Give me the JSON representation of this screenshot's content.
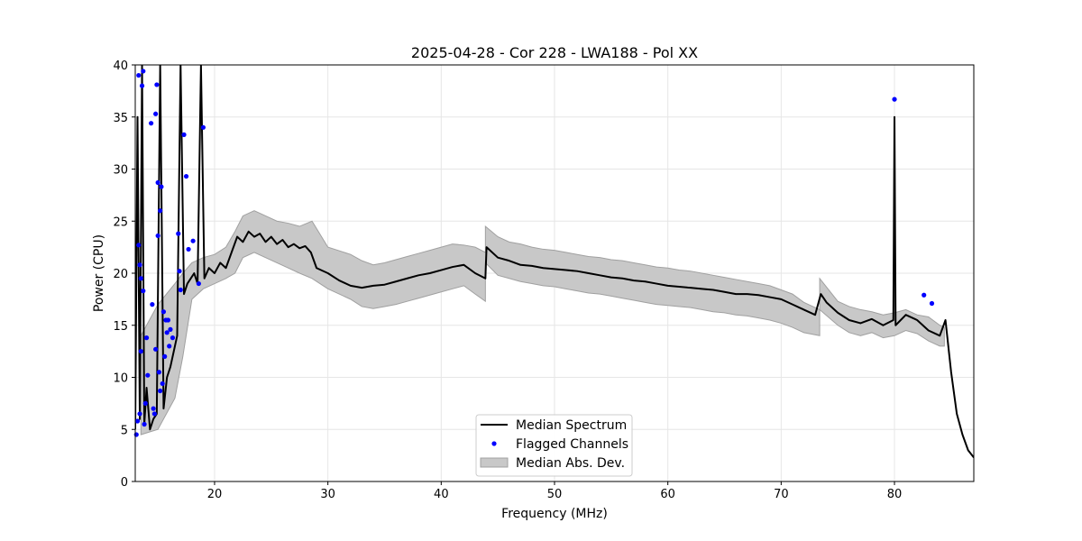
{
  "chart_data": {
    "type": "line",
    "title": "2025-04-28 - Cor 228 - LWA188 - Pol XX",
    "xlabel": "Frequency (MHz)",
    "ylabel": "Power (CPU)",
    "xlim": [
      13.0,
      87.0
    ],
    "ylim": [
      0,
      40
    ],
    "xticks": [
      20,
      30,
      40,
      50,
      60,
      70,
      80
    ],
    "yticks": [
      0,
      5,
      10,
      15,
      20,
      25,
      30,
      35,
      40
    ],
    "grid": true,
    "legend_position": "lower-center",
    "colors": {
      "median": "#000000",
      "flagged": "#0000ff",
      "mad_fill": "#c8c8c8",
      "mad_edge": "#a0a0a0",
      "grid": "#e6e6e6"
    },
    "series": [
      {
        "name": "Median Spectrum",
        "type": "line",
        "x": [
          13.0,
          13.2,
          13.4,
          13.6,
          13.8,
          14.0,
          14.3,
          14.6,
          14.9,
          15.2,
          15.5,
          15.8,
          16.1,
          16.4,
          16.7,
          17.0,
          17.3,
          17.6,
          17.9,
          18.2,
          18.5,
          18.8,
          19.1,
          19.5,
          20.0,
          20.5,
          21.0,
          21.5,
          22.0,
          22.5,
          23.0,
          23.5,
          24.0,
          24.5,
          25.0,
          25.5,
          26.0,
          26.5,
          27.0,
          27.5,
          28.0,
          28.5,
          29.0,
          30.0,
          31.0,
          32.0,
          33.0,
          34.0,
          35.0,
          36.0,
          37.0,
          38.0,
          39.0,
          40.0,
          41.0,
          42.0,
          43.0,
          43.9,
          44.0,
          45.0,
          46.0,
          47.0,
          48.0,
          49.0,
          50.0,
          51.0,
          52.0,
          53.0,
          54.0,
          55.0,
          56.0,
          57.0,
          58.0,
          59.0,
          60.0,
          61.0,
          62.0,
          63.0,
          64.0,
          65.0,
          66.0,
          67.0,
          68.0,
          69.0,
          70.0,
          71.0,
          72.0,
          73.0,
          73.5,
          74.0,
          75.0,
          76.0,
          77.0,
          78.0,
          79.0,
          79.9,
          80.0,
          80.1,
          81.0,
          82.0,
          83.0,
          84.0,
          84.5,
          85.0,
          85.5,
          86.0,
          86.5,
          87.0
        ],
        "y": [
          5.0,
          35.0,
          6.0,
          40.0,
          5.5,
          9.0,
          5.0,
          6.0,
          6.5,
          40.0,
          7.0,
          10.0,
          11.0,
          12.5,
          14.0,
          40.0,
          18.0,
          19.0,
          19.5,
          20.0,
          19.0,
          40.0,
          19.5,
          20.5,
          20.0,
          21.0,
          20.5,
          22.0,
          23.5,
          23.0,
          24.0,
          23.5,
          23.8,
          23.0,
          23.5,
          22.8,
          23.2,
          22.5,
          22.8,
          22.4,
          22.6,
          22.0,
          20.5,
          20.0,
          19.3,
          18.8,
          18.6,
          18.8,
          18.9,
          19.2,
          19.5,
          19.8,
          20.0,
          20.3,
          20.6,
          20.8,
          20.0,
          19.5,
          22.5,
          21.5,
          21.2,
          20.8,
          20.7,
          20.5,
          20.4,
          20.3,
          20.2,
          20.0,
          19.8,
          19.6,
          19.5,
          19.3,
          19.2,
          19.0,
          18.8,
          18.7,
          18.6,
          18.5,
          18.4,
          18.2,
          18.0,
          18.0,
          17.9,
          17.7,
          17.5,
          17.0,
          16.5,
          16.0,
          18.0,
          17.2,
          16.2,
          15.5,
          15.2,
          15.6,
          15.0,
          15.5,
          35.0,
          15.0,
          16.0,
          15.5,
          14.5,
          14.0,
          15.5,
          10.5,
          6.5,
          4.5,
          3.0,
          2.3
        ]
      },
      {
        "name": "Flagged Channels",
        "type": "scatter",
        "x": [
          13.1,
          13.2,
          13.3,
          13.3,
          13.4,
          13.4,
          13.5,
          13.5,
          13.6,
          13.7,
          13.7,
          13.8,
          13.9,
          14.0,
          14.1,
          14.4,
          14.5,
          14.6,
          14.7,
          14.8,
          14.8,
          14.9,
          15.0,
          15.0,
          15.1,
          15.2,
          15.2,
          15.3,
          15.4,
          15.5,
          15.6,
          15.7,
          15.8,
          15.9,
          16.0,
          16.1,
          16.3,
          16.8,
          16.9,
          17.0,
          17.3,
          17.5,
          17.7,
          18.1,
          18.6,
          19.0,
          80.0,
          82.6,
          83.3
        ],
        "y": [
          4.5,
          5.8,
          22.7,
          39.0,
          20.8,
          6.5,
          19.5,
          12.5,
          38.0,
          18.3,
          39.4,
          5.5,
          7.5,
          13.8,
          10.2,
          34.4,
          17.0,
          7.0,
          6.5,
          35.3,
          12.7,
          38.1,
          23.6,
          28.7,
          10.5,
          8.7,
          26.0,
          28.3,
          9.4,
          16.3,
          12.0,
          15.5,
          14.3,
          15.5,
          13.0,
          14.6,
          13.8,
          23.8,
          20.2,
          18.4,
          33.3,
          29.3,
          22.3,
          23.1,
          19.0,
          34.0,
          36.7,
          17.9,
          17.1
        ]
      },
      {
        "name": "Median Abs. Dev.",
        "type": "area",
        "x": [
          13.5,
          15.0,
          16.5,
          17.2,
          18.0,
          19.0,
          20.0,
          21.0,
          21.8,
          22.5,
          23.5,
          24.5,
          25.5,
          26.5,
          27.5,
          28.6,
          28.6,
          30.0,
          32.0,
          33.0,
          34.0,
          35.0,
          36.0,
          37.0,
          38.0,
          39.0,
          40.0,
          41.0,
          42.0,
          43.0,
          43.9,
          43.9,
          45.0,
          46.0,
          47.0,
          48.0,
          49.0,
          50.0,
          51.0,
          52.0,
          53.0,
          54.0,
          55.0,
          56.0,
          57.0,
          58.0,
          59.0,
          60.0,
          61.0,
          62.0,
          63.0,
          64.0,
          65.0,
          66.0,
          67.0,
          68.0,
          69.0,
          70.0,
          71.0,
          72.0,
          73.4,
          73.4,
          75.0,
          76.0,
          77.0,
          78.0,
          79.0,
          80.0,
          81.0,
          82.0,
          83.0,
          84.0,
          84.4
        ],
        "lower": [
          4.5,
          5.0,
          8.0,
          12.0,
          17.5,
          18.5,
          19.0,
          19.5,
          20.0,
          21.5,
          22.0,
          21.5,
          21.0,
          20.5,
          20.0,
          19.5,
          19.5,
          18.5,
          17.5,
          16.8,
          16.6,
          16.8,
          17.0,
          17.3,
          17.6,
          17.9,
          18.2,
          18.5,
          18.8,
          18.0,
          17.3,
          21.0,
          19.8,
          19.5,
          19.2,
          19.0,
          18.8,
          18.7,
          18.5,
          18.3,
          18.1,
          18.0,
          17.8,
          17.6,
          17.4,
          17.2,
          17.0,
          16.9,
          16.8,
          16.7,
          16.5,
          16.3,
          16.2,
          16.0,
          15.9,
          15.7,
          15.5,
          15.2,
          14.8,
          14.3,
          14.0,
          16.5,
          15.0,
          14.3,
          14.0,
          14.3,
          13.8,
          14.0,
          14.5,
          14.2,
          13.5,
          13.0,
          13.0
        ],
        "upper": [
          14.0,
          17.0,
          19.0,
          20.0,
          21.0,
          21.5,
          21.8,
          22.5,
          24.0,
          25.5,
          26.0,
          25.5,
          25.0,
          24.8,
          24.5,
          25.0,
          25.0,
          22.5,
          21.8,
          21.2,
          20.8,
          21.0,
          21.3,
          21.6,
          21.9,
          22.2,
          22.5,
          22.8,
          22.7,
          22.5,
          22.0,
          24.5,
          23.5,
          23.0,
          22.8,
          22.5,
          22.3,
          22.2,
          22.0,
          21.8,
          21.6,
          21.5,
          21.3,
          21.2,
          21.0,
          20.8,
          20.6,
          20.5,
          20.3,
          20.2,
          20.0,
          19.8,
          19.6,
          19.4,
          19.2,
          19.0,
          18.8,
          18.4,
          18.0,
          17.2,
          16.5,
          19.5,
          17.3,
          16.8,
          16.5,
          16.3,
          16.0,
          16.2,
          16.5,
          16.0,
          15.8,
          15.0,
          14.8
        ]
      }
    ],
    "legend": [
      {
        "label": "Median Spectrum",
        "marker": "line"
      },
      {
        "label": "Flagged Channels",
        "marker": "dot"
      },
      {
        "label": "Median Abs. Dev.",
        "marker": "patch"
      }
    ]
  }
}
